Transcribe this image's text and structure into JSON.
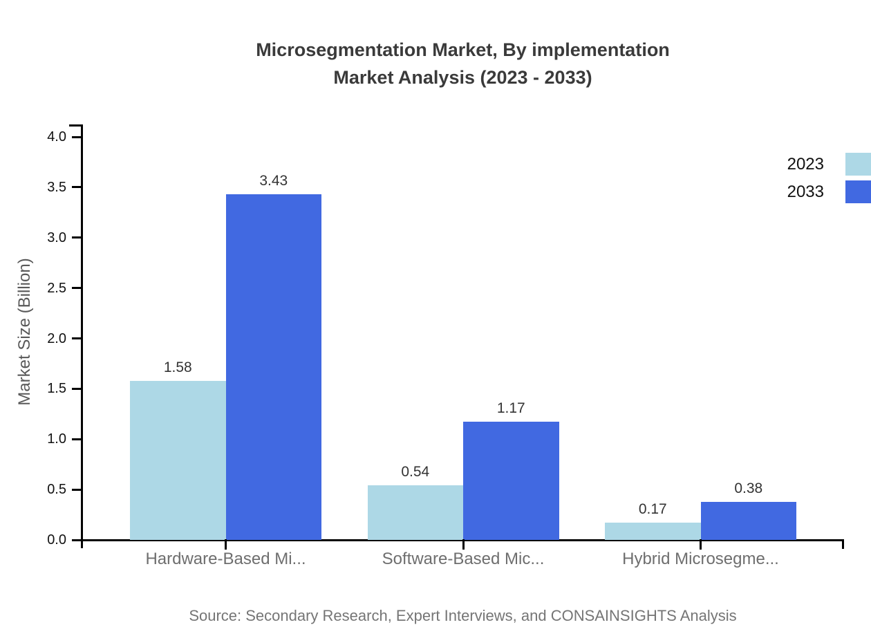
{
  "title": {
    "line1": "Microsegmentation Market, By implementation",
    "line2": "Market Analysis (2023 - 2033)"
  },
  "y_axis_title": "Market Size (Billion)",
  "source": "Source: Secondary Research, Expert Interviews, and CONSAINSIGHTS Analysis",
  "colors": {
    "series_2023": "#ADD8E6",
    "series_2033": "#4169E1",
    "axis": "#000000",
    "title_text": "#3A3A3A",
    "category_text": "#6E6E6E",
    "source_text": "#757575"
  },
  "chart_data": {
    "type": "bar",
    "title": "Microsegmentation Market, By implementation Market Analysis (2023 - 2033)",
    "categories": [
      "Hardware-Based Mi...",
      "Software-Based Mic...",
      "Hybrid Microsegme..."
    ],
    "series": [
      {
        "name": "2023",
        "color": "#ADD8E6",
        "values": [
          1.58,
          0.54,
          0.17
        ]
      },
      {
        "name": "2033",
        "color": "#4169E1",
        "values": [
          3.43,
          1.17,
          0.38
        ]
      }
    ],
    "xlabel": "",
    "ylabel": "Market Size (Billion)",
    "ylim": [
      0,
      4
    ],
    "ytick_step": 0.5,
    "ytick_labels": [
      "0.0",
      "0.5",
      "1.0",
      "1.5",
      "2.0",
      "2.5",
      "3.0",
      "3.5",
      "4.0"
    ],
    "grid": false,
    "value_labels": true,
    "value_label_format": "0.00",
    "legend_position": "top-right",
    "legend": [
      "2023",
      "2033"
    ]
  }
}
